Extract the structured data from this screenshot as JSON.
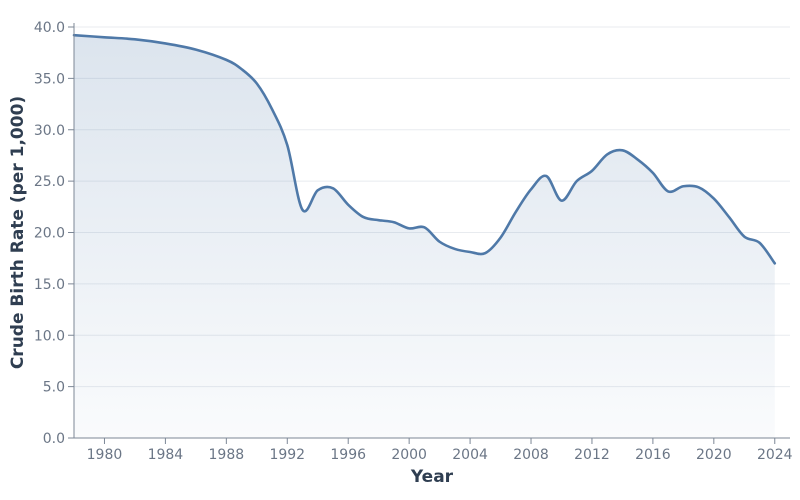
{
  "chart_data": {
    "type": "area",
    "title": "",
    "xlabel": "Year",
    "ylabel": "Crude Birth Rate (per 1,000)",
    "xlim": [
      1978,
      2025
    ],
    "ylim": [
      0,
      40
    ],
    "x_ticks": [
      1980,
      1984,
      1988,
      1992,
      1996,
      2000,
      2004,
      2008,
      2012,
      2016,
      2020,
      2024
    ],
    "y_ticks": [
      "0.0",
      "5.0",
      "10.0",
      "15.0",
      "20.0",
      "25.0",
      "30.0",
      "35.0",
      "40.0"
    ],
    "grid": true,
    "legend": "none",
    "colors": {
      "line": "#4f79a8",
      "fill": "#4f79a8"
    },
    "series": [
      {
        "x": [
          1978,
          1980,
          1982,
          1984,
          1986,
          1988,
          1989,
          1990,
          1991,
          1992,
          1993,
          1994,
          1995,
          1996,
          1997,
          1998,
          1999,
          2000,
          2001,
          2002,
          2003,
          2004,
          2005,
          2006,
          2007,
          2008,
          2009,
          2010,
          2011,
          2012,
          2013,
          2014,
          2015,
          2016,
          2017,
          2018,
          2019,
          2020,
          2021,
          2022,
          2023,
          2024
        ],
        "values": [
          39.2,
          39.0,
          38.8,
          38.4,
          37.8,
          36.8,
          35.9,
          34.5,
          32.0,
          28.5,
          22.2,
          24.1,
          24.3,
          22.7,
          21.5,
          21.2,
          21.0,
          20.4,
          20.5,
          19.1,
          18.4,
          18.1,
          18.0,
          19.5,
          22.0,
          24.2,
          25.5,
          23.1,
          25.0,
          26.0,
          27.6,
          28.0,
          27.1,
          25.8,
          24.0,
          24.5,
          24.4,
          23.3,
          21.5,
          19.6,
          19.0,
          17.0
        ]
      }
    ]
  }
}
